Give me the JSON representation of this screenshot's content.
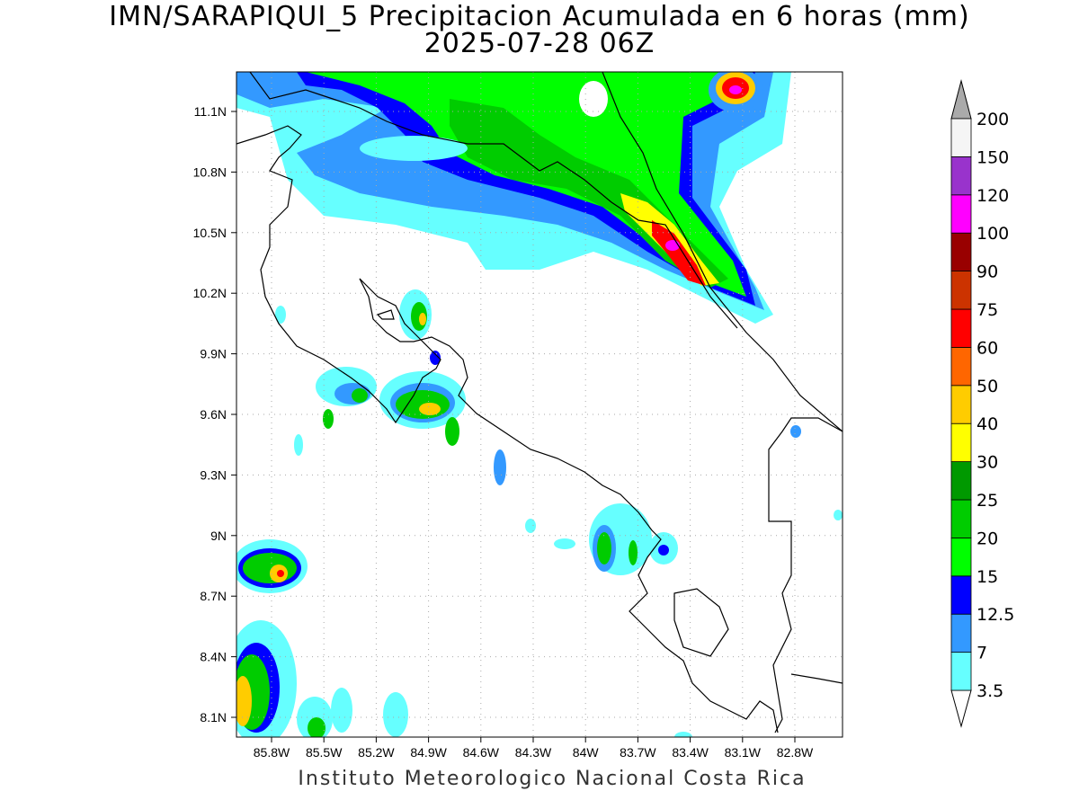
{
  "title_line1": "IMN/SARAPIQUI_5 Precipitacion Acumulada en 6 horas (mm)",
  "title_line2": "2025-07-28 06Z",
  "footer": "Instituto Meteorologico Nacional Costa Rica",
  "map": {
    "lon_labels": [
      "85.8W",
      "85.5W",
      "85.2W",
      "84.9W",
      "84.6W",
      "84.3W",
      "84W",
      "83.7W",
      "83.4W",
      "83.1W",
      "82.8W"
    ],
    "lat_labels": [
      "11.1N",
      "10.8N",
      "10.5N",
      "10.2N",
      "9.9N",
      "9.6N",
      "9.3N",
      "9N",
      "8.7N",
      "8.4N",
      "8.1N"
    ]
  },
  "colorbar": {
    "levels": [
      {
        "label": "3.5",
        "color": "#66ffff"
      },
      {
        "label": "7",
        "color": "#3399ff"
      },
      {
        "label": "12.5",
        "color": "#0000ff"
      },
      {
        "label": "15",
        "color": "#00ff00"
      },
      {
        "label": "20",
        "color": "#00cc00"
      },
      {
        "label": "25",
        "color": "#009900"
      },
      {
        "label": "30",
        "color": "#ffff00"
      },
      {
        "label": "40",
        "color": "#ffcc00"
      },
      {
        "label": "50",
        "color": "#ff6600"
      },
      {
        "label": "60",
        "color": "#ff0000"
      },
      {
        "label": "75",
        "color": "#cc3300"
      },
      {
        "label": "90",
        "color": "#990000"
      },
      {
        "label": "100",
        "color": "#ff00ff"
      },
      {
        "label": "120",
        "color": "#9933cc"
      },
      {
        "label": "150",
        "color": "#f5f5f5"
      },
      {
        "label": "200",
        "color": "#aaaaaa"
      }
    ]
  }
}
